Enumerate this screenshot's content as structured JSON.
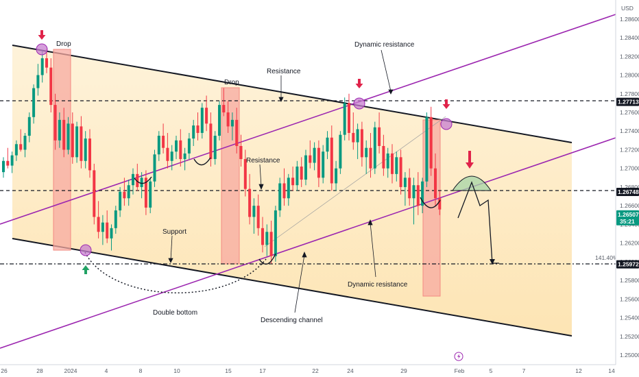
{
  "chart_data": {
    "type": "line",
    "subtype": "candlestick",
    "currency": "USD",
    "ylim": [
      1.25,
      1.288
    ],
    "y_ticks": [
      1.286,
      1.284,
      1.282,
      1.28,
      1.278,
      1.276,
      1.274,
      1.272,
      1.27,
      1.268,
      1.266,
      1.264,
      1.262,
      1.26,
      1.258,
      1.256,
      1.254,
      1.252,
      1.25
    ],
    "y_tick_labels": [
      "1.28600",
      "1.28400",
      "1.28200",
      "1.28000",
      "1.27800",
      "1.27600",
      "1.27400",
      "1.27200",
      "1.27000",
      "1.26800",
      "1.26600",
      "1.26400",
      "1.26200",
      "1.26000",
      "1.25800",
      "1.25600",
      "1.25400",
      "1.25200",
      "1.25000"
    ],
    "x_ticks": [
      "26",
      "28",
      "2024",
      "4",
      "8",
      "10",
      "15",
      "17",
      "22",
      "24",
      "29",
      "Feb",
      "5",
      "7",
      "12",
      "14"
    ],
    "grid": false,
    "price_levels": [
      {
        "label": "1.27713",
        "value": 1.27713,
        "color": "#131722"
      },
      {
        "label": "1.26748",
        "value": 1.26748,
        "color": "#131722"
      },
      {
        "label": "1.25972",
        "value": 1.25972,
        "color": "#131722"
      }
    ],
    "current_price": {
      "label": "1.26507",
      "countdown": "35:21",
      "value": 1.26507,
      "color": "#089981"
    },
    "fib_label": "141.40%",
    "annotations": {
      "drop_1": "Drop",
      "drop_2": "Drop",
      "resistance_top": "Resistance",
      "resistance_mid": "Resistance",
      "dynamic_resistance_top": "Dynamic resistance",
      "dynamic_resistance_bottom": "Dynamic resistance",
      "support": "Support",
      "double_bottom": "Double bottom",
      "descending_channel": "Descending channel"
    },
    "colors": {
      "bull": "#089981",
      "bear": "#f23645",
      "channel_fill": "#fde7b8",
      "channel_line": "#131722",
      "dynamic_line": "#9c27b0",
      "drop_box": "#f7a9a0",
      "circle": "#c77dcf",
      "arrow_down": "#e0234a",
      "arrow_up": "#21a264",
      "projection_cap": "#a5d6a7"
    },
    "series": [
      {
        "name": "",
        "candles": [
          [
            1.2696,
            1.2712,
            1.269,
            1.2708
          ],
          [
            1.2708,
            1.2722,
            1.27,
            1.2703
          ],
          [
            1.2703,
            1.2718,
            1.2695,
            1.2714
          ],
          [
            1.2714,
            1.273,
            1.2708,
            1.2726
          ],
          [
            1.2726,
            1.2742,
            1.2718,
            1.272
          ],
          [
            1.272,
            1.2738,
            1.2712,
            1.2735
          ],
          [
            1.2735,
            1.276,
            1.2728,
            1.2755
          ],
          [
            1.2755,
            1.279,
            1.2748,
            1.2786
          ],
          [
            1.2786,
            1.2812,
            1.2778,
            1.28
          ],
          [
            1.28,
            1.2826,
            1.2792,
            1.2818
          ],
          [
            1.2818,
            1.2828,
            1.2802,
            1.2808
          ],
          [
            1.2808,
            1.2818,
            1.276,
            1.2768
          ],
          [
            1.2768,
            1.278,
            1.272,
            1.273
          ],
          [
            1.273,
            1.276,
            1.2722,
            1.2752
          ],
          [
            1.2752,
            1.2765,
            1.2712,
            1.272
          ],
          [
            1.272,
            1.2755,
            1.2715,
            1.2748
          ],
          [
            1.2748,
            1.276,
            1.2705,
            1.2712
          ],
          [
            1.2712,
            1.275,
            1.2706,
            1.2745
          ],
          [
            1.2745,
            1.2756,
            1.27,
            1.2708
          ],
          [
            1.2708,
            1.274,
            1.27,
            1.2732
          ],
          [
            1.2732,
            1.2742,
            1.269,
            1.2698
          ],
          [
            1.2698,
            1.2705,
            1.264,
            1.2648
          ],
          [
            1.2648,
            1.2665,
            1.2625,
            1.2632
          ],
          [
            1.2632,
            1.265,
            1.2618,
            1.2642
          ],
          [
            1.2642,
            1.2655,
            1.262,
            1.2625
          ],
          [
            1.2625,
            1.264,
            1.2612,
            1.2636
          ],
          [
            1.2636,
            1.266,
            1.263,
            1.2655
          ],
          [
            1.2655,
            1.268,
            1.2648,
            1.2675
          ],
          [
            1.2675,
            1.269,
            1.266,
            1.2668
          ],
          [
            1.2668,
            1.2688,
            1.266,
            1.2682
          ],
          [
            1.2682,
            1.27,
            1.2672,
            1.2694
          ],
          [
            1.2694,
            1.2705,
            1.2676,
            1.268
          ],
          [
            1.268,
            1.2696,
            1.2668,
            1.269
          ],
          [
            1.269,
            1.2698,
            1.265,
            1.2658
          ],
          [
            1.2658,
            1.269,
            1.2652,
            1.2686
          ],
          [
            1.2686,
            1.272,
            1.268,
            1.2715
          ],
          [
            1.2715,
            1.274,
            1.2708,
            1.2735
          ],
          [
            1.2735,
            1.2748,
            1.2716,
            1.2722
          ],
          [
            1.2722,
            1.2738,
            1.27,
            1.2708
          ],
          [
            1.2708,
            1.2725,
            1.2698,
            1.2718
          ],
          [
            1.2718,
            1.2735,
            1.271,
            1.273
          ],
          [
            1.273,
            1.2742,
            1.2702,
            1.271
          ],
          [
            1.271,
            1.2722,
            1.2698,
            1.2716
          ],
          [
            1.2716,
            1.2738,
            1.271,
            1.2732
          ],
          [
            1.2732,
            1.2752,
            1.2724,
            1.2746
          ],
          [
            1.2746,
            1.276,
            1.273,
            1.2738
          ],
          [
            1.2738,
            1.277,
            1.2732,
            1.2765
          ],
          [
            1.2765,
            1.2778,
            1.274,
            1.2748
          ],
          [
            1.2748,
            1.276,
            1.2702,
            1.271
          ],
          [
            1.271,
            1.274,
            1.2704,
            1.2735
          ],
          [
            1.2735,
            1.2772,
            1.273,
            1.2768
          ],
          [
            1.2768,
            1.2786,
            1.2756,
            1.276
          ],
          [
            1.276,
            1.2772,
            1.2738,
            1.2745
          ],
          [
            1.2745,
            1.276,
            1.273,
            1.2752
          ],
          [
            1.2752,
            1.2765,
            1.2716,
            1.2724
          ],
          [
            1.2724,
            1.2736,
            1.2702,
            1.271
          ],
          [
            1.271,
            1.272,
            1.267,
            1.2678
          ],
          [
            1.2678,
            1.2694,
            1.264,
            1.2648
          ],
          [
            1.2648,
            1.2668,
            1.263,
            1.266
          ],
          [
            1.266,
            1.2672,
            1.2628,
            1.2636
          ],
          [
            1.2636,
            1.2648,
            1.261,
            1.2618
          ],
          [
            1.2618,
            1.264,
            1.2606,
            1.2632
          ],
          [
            1.2632,
            1.2644,
            1.2598,
            1.2606
          ],
          [
            1.2606,
            1.266,
            1.26,
            1.2655
          ],
          [
            1.2655,
            1.269,
            1.2648,
            1.2684
          ],
          [
            1.2684,
            1.27,
            1.266,
            1.2668
          ],
          [
            1.2668,
            1.2694,
            1.266,
            1.269
          ],
          [
            1.269,
            1.2702,
            1.2676,
            1.2682
          ],
          [
            1.2682,
            1.2708,
            1.2676,
            1.2702
          ],
          [
            1.2702,
            1.2712,
            1.268,
            1.2688
          ],
          [
            1.2688,
            1.272,
            1.2682,
            1.2714
          ],
          [
            1.2714,
            1.273,
            1.27,
            1.2706
          ],
          [
            1.2706,
            1.2728,
            1.2698,
            1.2722
          ],
          [
            1.2722,
            1.273,
            1.268,
            1.269
          ],
          [
            1.269,
            1.2725,
            1.2684,
            1.2718
          ],
          [
            1.2718,
            1.274,
            1.271,
            1.2733
          ],
          [
            1.2733,
            1.2746,
            1.2676,
            1.2684
          ],
          [
            1.2684,
            1.2708,
            1.2676,
            1.27
          ],
          [
            1.27,
            1.274,
            1.2694,
            1.2736
          ],
          [
            1.2736,
            1.2776,
            1.273,
            1.277
          ],
          [
            1.277,
            1.278,
            1.273,
            1.2738
          ],
          [
            1.2738,
            1.276,
            1.272,
            1.2728
          ],
          [
            1.2728,
            1.2748,
            1.271,
            1.2742
          ],
          [
            1.2742,
            1.275,
            1.2702,
            1.2712
          ],
          [
            1.2712,
            1.273,
            1.2694,
            1.2722
          ],
          [
            1.2722,
            1.2738,
            1.269,
            1.27
          ],
          [
            1.27,
            1.275,
            1.2694,
            1.2744
          ],
          [
            1.2744,
            1.276,
            1.2716,
            1.2724
          ],
          [
            1.2724,
            1.2736,
            1.2692,
            1.27
          ],
          [
            1.27,
            1.2722,
            1.269,
            1.2716
          ],
          [
            1.2716,
            1.2726,
            1.2684,
            1.2694
          ],
          [
            1.2694,
            1.2718,
            1.2686,
            1.2712
          ],
          [
            1.2712,
            1.272,
            1.2672,
            1.268
          ],
          [
            1.268,
            1.2696,
            1.266,
            1.269
          ],
          [
            1.269,
            1.27,
            1.266,
            1.2668
          ],
          [
            1.2668,
            1.269,
            1.264,
            1.2682
          ],
          [
            1.2682,
            1.2696,
            1.265,
            1.266
          ],
          [
            1.266,
            1.269,
            1.2652,
            1.2686
          ],
          [
            1.2686,
            1.276,
            1.268,
            1.2755
          ],
          [
            1.2755,
            1.2766,
            1.2692,
            1.27
          ],
          [
            1.27,
            1.2716,
            1.266,
            1.2668
          ],
          [
            1.2668,
            1.2676,
            1.265,
            1.2656
          ]
        ]
      }
    ]
  }
}
